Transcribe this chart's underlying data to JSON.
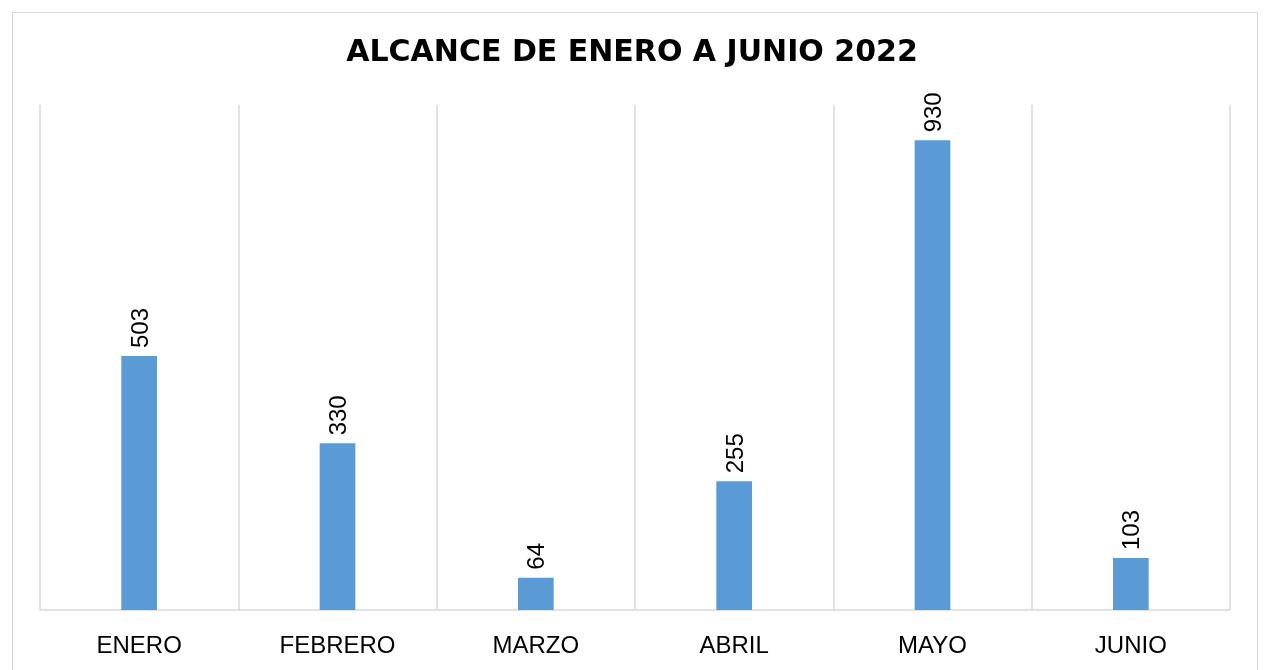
{
  "chart_data": {
    "type": "bar",
    "title": "ALCANCE DE ENERO A JUNIO 2022",
    "categories": [
      "ENERO",
      "FEBRERO",
      "MARZO",
      "ABRIL",
      "MAYO",
      "JUNIO"
    ],
    "values": [
      503,
      330,
      64,
      255,
      930,
      103
    ],
    "color": "#5b9bd5",
    "data_labels": true,
    "grid": "x"
  }
}
